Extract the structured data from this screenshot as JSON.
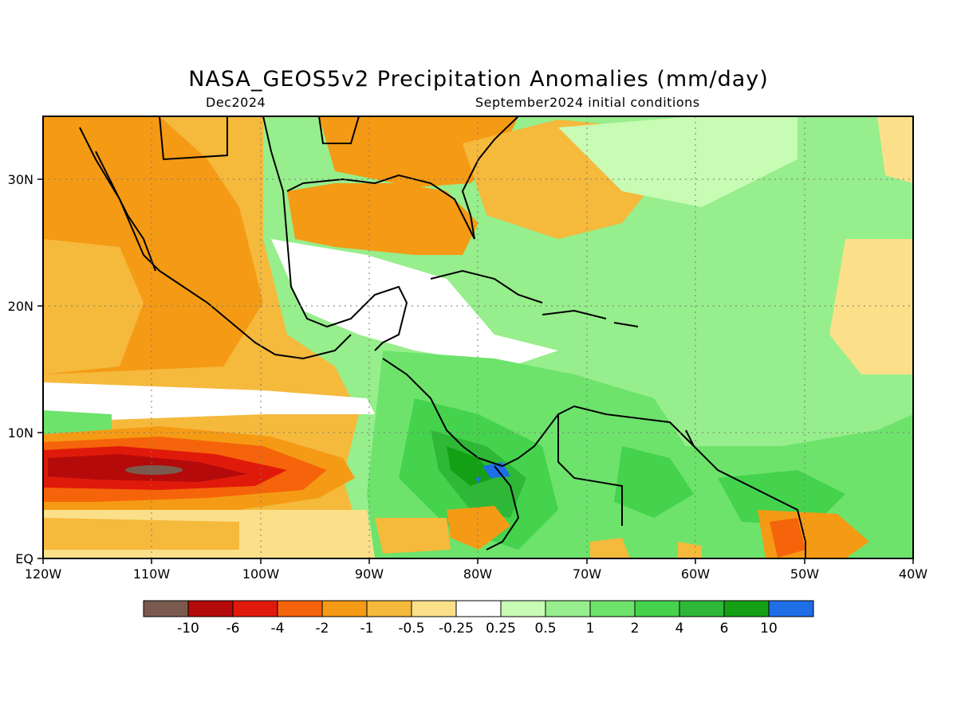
{
  "header": {
    "title": "NASA_GEOS5v2 Precipitation Anomalies (mm/day)",
    "left_subtitle": "Dec2024",
    "right_subtitle": "September2024 initial conditions"
  },
  "map": {
    "lon_range": [
      -120,
      -40
    ],
    "lat_range": [
      0,
      35
    ],
    "x_ticks": [
      "120W",
      "110W",
      "100W",
      "90W",
      "80W",
      "70W",
      "60W",
      "50W",
      "40W"
    ],
    "y_ticks": [
      "EQ",
      "10N",
      "20N",
      "30N"
    ],
    "ocean_labels": []
  },
  "colorbar": {
    "labels": [
      "-10",
      "-6",
      "-4",
      "-2",
      "-1",
      "-0.5",
      "-0.25",
      "0.25",
      "0.5",
      "1",
      "2",
      "4",
      "6",
      "10"
    ],
    "colors": [
      "#7a5a4e",
      "#b40a0a",
      "#e01a0a",
      "#f5640a",
      "#f59a14",
      "#f5b93c",
      "#fbe089",
      "#ffffff",
      "#c8fbb4",
      "#97ee8c",
      "#6de36c",
      "#45d24c",
      "#2fb838",
      "#14a014",
      "#1e6ee6"
    ]
  }
}
